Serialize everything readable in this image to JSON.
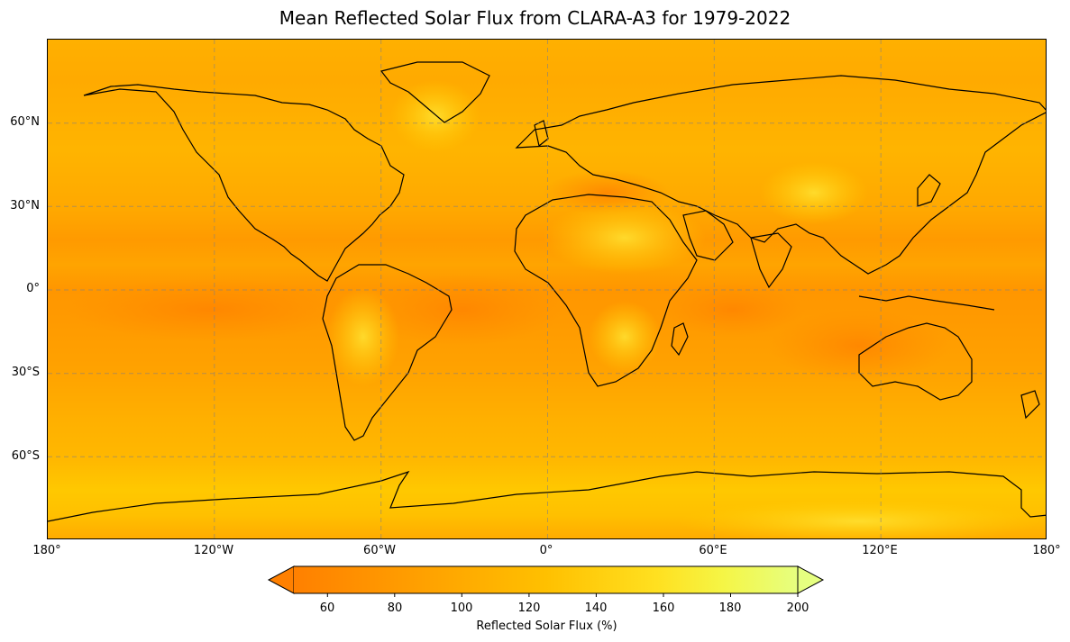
{
  "title": "Mean Reflected Solar Flux from CLARA-A3 for 1979-2022",
  "lat_ticks": [
    "60°N",
    "30°N",
    "0°",
    "30°S",
    "60°S"
  ],
  "lon_ticks": [
    "180°",
    "120°W",
    "60°W",
    "0°",
    "60°E",
    "120°E",
    "180°"
  ],
  "colorbar": {
    "label": "Reflected Solar Flux (%)",
    "ticks": [
      "60",
      "80",
      "100",
      "120",
      "140",
      "160",
      "180",
      "200"
    ],
    "range": [
      50,
      200
    ],
    "extend": "both",
    "colors": [
      "#ff8000",
      "#ffa600",
      "#ffc400",
      "#ffe020",
      "#f5f540",
      "#e6ff80"
    ]
  },
  "map": {
    "projection": "PlateCarree",
    "extent": {
      "lon": [
        -180,
        180
      ],
      "lat": [
        -90,
        90
      ]
    },
    "gridlines": "dashed gray",
    "coastlines": "black"
  }
}
